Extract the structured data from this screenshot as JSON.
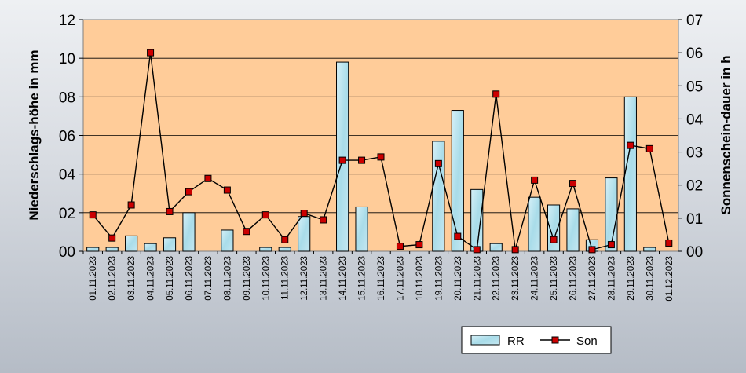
{
  "chart_data": {
    "type": "bar",
    "categories": [
      "01.11.2023",
      "02.11.2023",
      "03.11.2023",
      "04.11.2023",
      "05.11.2023",
      "06.11.2023",
      "07.11.2023",
      "08.11.2023",
      "09.11.2023",
      "10.11.2023",
      "11.11.2023",
      "12.11.2023",
      "13.11.2023",
      "14.11.2023",
      "15.11.2023",
      "16.11.2023",
      "17.11.2023",
      "18.11.2023",
      "19.11.2023",
      "20.11.2023",
      "21.11.2023",
      "22.11.2023",
      "23.11.2023",
      "24.11.2023",
      "25.11.2023",
      "26.11.2023",
      "27.11.2023",
      "28.11.2023",
      "29.11.2023",
      "30.11.2023",
      "01.12.2023"
    ],
    "series": [
      {
        "name": "RR",
        "type": "bar",
        "axis": "left",
        "values": [
          0.2,
          0.2,
          0.8,
          0.4,
          0.7,
          2.0,
          0,
          1.1,
          0,
          0.2,
          0.2,
          1.8,
          0,
          9.8,
          2.3,
          0,
          0,
          0,
          5.7,
          7.3,
          3.2,
          0.4,
          0,
          2.8,
          2.4,
          2.2,
          0.6,
          3.8,
          8.0,
          0.2,
          0
        ]
      },
      {
        "name": "Son",
        "type": "line",
        "axis": "right",
        "values": [
          1.1,
          0.4,
          1.4,
          6.0,
          1.2,
          1.8,
          2.2,
          1.85,
          0.6,
          1.1,
          0.35,
          1.15,
          0.95,
          2.75,
          2.75,
          2.85,
          0.15,
          0.2,
          2.65,
          0.45,
          0.05,
          4.75,
          0.05,
          2.15,
          0.35,
          2.05,
          0.05,
          0.2,
          3.2,
          3.1,
          0.25
        ]
      }
    ],
    "ylabel": "Niederschlags-höhe in mm",
    "y2label": "Sonnenschein-dauer in h",
    "ylim": [
      0,
      12
    ],
    "y2lim": [
      0,
      7
    ],
    "yticks": [
      "00",
      "02",
      "04",
      "06",
      "08",
      "10",
      "12"
    ],
    "y2ticks": [
      "00",
      "01",
      "02",
      "03",
      "04",
      "05",
      "06",
      "07"
    ],
    "grid": true,
    "legend_position": "bottom-right",
    "colors": {
      "plot_background": "#ffcc99",
      "bar_fill": "#a9dce9",
      "bar_edge": "#000000",
      "line": "#000000",
      "marker": "#cc0000"
    }
  }
}
